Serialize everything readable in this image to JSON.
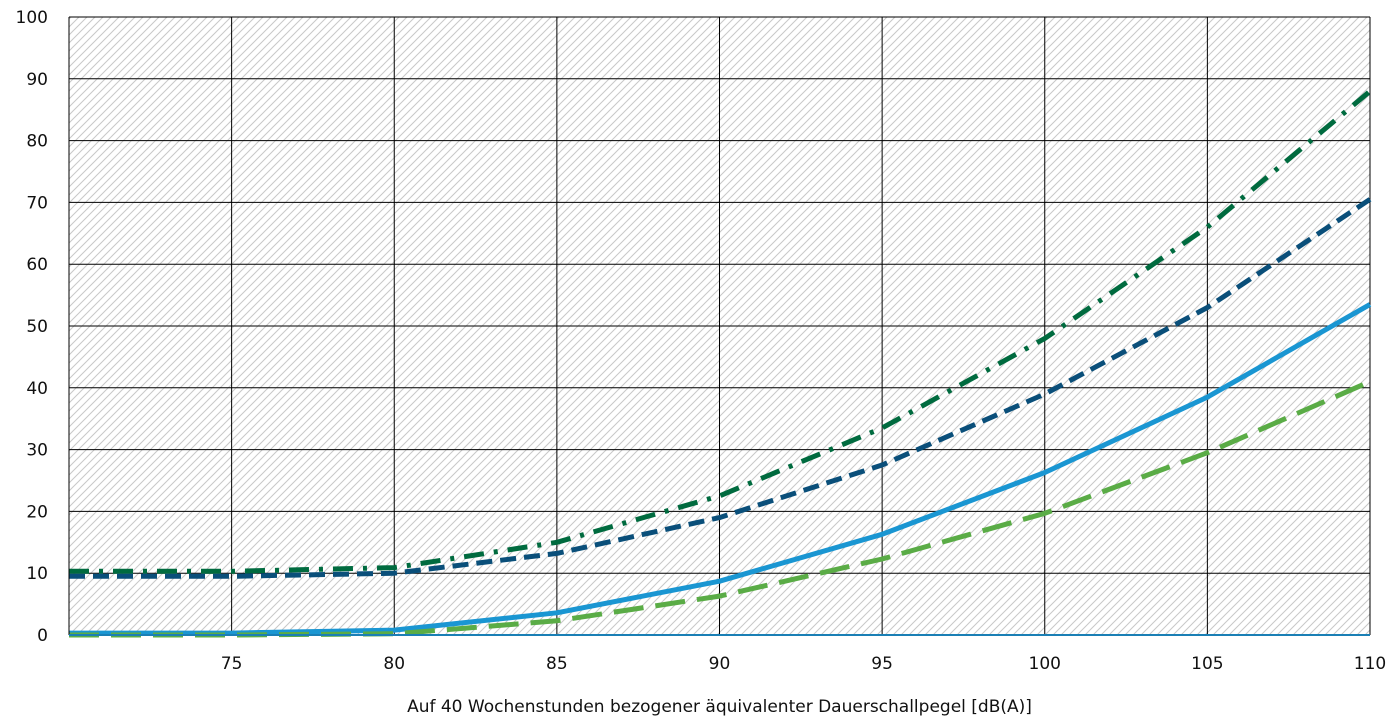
{
  "chart_data": {
    "type": "line",
    "title": "",
    "xlabel": "Auf 40 Wochenstunden bezogener äquivalenter Dauerschallpegel [dB(A)]",
    "ylabel": "",
    "xlim": [
      70,
      110
    ],
    "ylim": [
      0,
      100
    ],
    "x_ticks": [
      75,
      80,
      85,
      90,
      95,
      100,
      105,
      110
    ],
    "y_ticks": [
      0,
      10,
      20,
      30,
      40,
      50,
      60,
      70,
      80,
      90,
      100
    ],
    "grid": true,
    "background_pattern": "diagonal-hatch",
    "series": [
      {
        "color": "#006b3f",
        "dash": "dash-dot",
        "x": [
          70,
          75,
          80,
          85,
          90,
          95,
          100,
          105,
          110
        ],
        "y": [
          10.3,
          10.3,
          10.9,
          15.0,
          22.5,
          33.5,
          48.0,
          66.0,
          88.0
        ]
      },
      {
        "color": "#0a4f7a",
        "dash": "dashed",
        "x": [
          70,
          75,
          80,
          85,
          90,
          95,
          100,
          105,
          110
        ],
        "y": [
          9.5,
          9.5,
          10.0,
          13.2,
          19.0,
          27.5,
          39.0,
          53.0,
          70.5
        ]
      },
      {
        "color": "#1a96d2",
        "dash": "solid",
        "x": [
          70,
          75,
          80,
          85,
          90,
          95,
          100,
          105,
          110
        ],
        "y": [
          0.3,
          0.3,
          0.8,
          3.6,
          8.7,
          16.3,
          26.3,
          38.5,
          53.5
        ]
      },
      {
        "color": "#5aac46",
        "dash": "long-dash",
        "x": [
          70,
          75,
          80,
          85,
          90,
          95,
          100,
          105,
          110
        ],
        "y": [
          0.0,
          0.0,
          0.2,
          2.3,
          6.3,
          12.3,
          19.7,
          29.5,
          41.0
        ]
      }
    ]
  }
}
